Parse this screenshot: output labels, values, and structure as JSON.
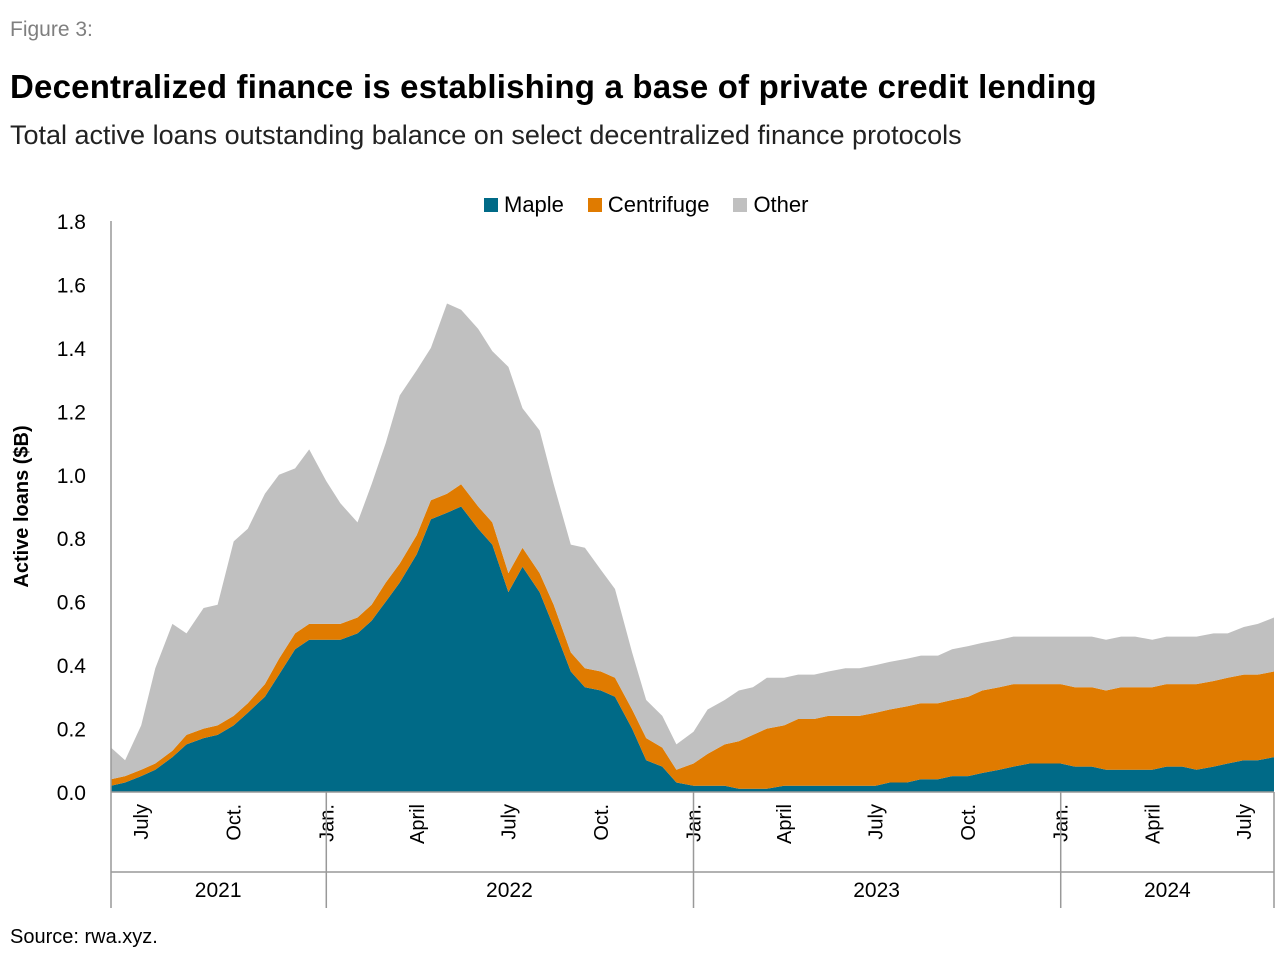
{
  "figure_label": "Figure 3:",
  "title": "Decentralized finance is establishing a base of private credit lending",
  "subtitle": "Total active loans outstanding balance on select decentralized finance protocols",
  "source": "Source: rwa.xyz.",
  "chart_data": {
    "type": "area",
    "stacked": true,
    "ylabel": "Active loans ($B)",
    "ylim": [
      0,
      1.8
    ],
    "yticks": [
      0.0,
      0.2,
      0.4,
      0.6,
      0.8,
      1.0,
      1.2,
      1.4,
      1.6,
      1.8
    ],
    "ytick_labels": [
      "0.0",
      "0.2",
      "0.4",
      "0.6",
      "0.8",
      "1.0",
      "1.2",
      "1.4",
      "1.6",
      "1.8"
    ],
    "grid": false,
    "legend_position": "top-center",
    "xlim": [
      "2021-06-01",
      "2024-07-31"
    ],
    "month_ticks": [
      {
        "date": "2021-07-01",
        "label": "July"
      },
      {
        "date": "2021-10-01",
        "label": "Oct."
      },
      {
        "date": "2022-01-01",
        "label": "Jan."
      },
      {
        "date": "2022-04-01",
        "label": "April"
      },
      {
        "date": "2022-07-01",
        "label": "July"
      },
      {
        "date": "2022-10-01",
        "label": "Oct."
      },
      {
        "date": "2023-01-01",
        "label": "Jan."
      },
      {
        "date": "2023-04-01",
        "label": "April"
      },
      {
        "date": "2023-07-01",
        "label": "July"
      },
      {
        "date": "2023-10-01",
        "label": "Oct."
      },
      {
        "date": "2024-01-01",
        "label": "Jan."
      },
      {
        "date": "2024-04-01",
        "label": "April"
      },
      {
        "date": "2024-07-01",
        "label": "July"
      }
    ],
    "year_groups": [
      {
        "label": "2021",
        "start": "2021-06-01",
        "end": "2021-12-31"
      },
      {
        "label": "2022",
        "start": "2022-01-01",
        "end": "2022-12-31"
      },
      {
        "label": "2023",
        "start": "2023-01-01",
        "end": "2023-12-31"
      },
      {
        "label": "2024",
        "start": "2024-01-01",
        "end": "2024-07-31"
      }
    ],
    "x": [
      "2021-06-01",
      "2021-06-15",
      "2021-07-01",
      "2021-07-15",
      "2021-08-01",
      "2021-08-15",
      "2021-09-01",
      "2021-09-15",
      "2021-10-01",
      "2021-10-15",
      "2021-11-01",
      "2021-11-15",
      "2021-12-01",
      "2021-12-15",
      "2022-01-01",
      "2022-01-15",
      "2022-02-01",
      "2022-02-15",
      "2022-03-01",
      "2022-03-15",
      "2022-04-01",
      "2022-04-15",
      "2022-05-01",
      "2022-05-15",
      "2022-06-01",
      "2022-06-15",
      "2022-07-01",
      "2022-07-15",
      "2022-08-01",
      "2022-08-15",
      "2022-09-01",
      "2022-09-15",
      "2022-10-01",
      "2022-10-15",
      "2022-11-01",
      "2022-11-15",
      "2022-12-01",
      "2022-12-15",
      "2023-01-01",
      "2023-01-15",
      "2023-02-01",
      "2023-02-15",
      "2023-03-01",
      "2023-03-15",
      "2023-04-01",
      "2023-04-15",
      "2023-05-01",
      "2023-05-15",
      "2023-06-01",
      "2023-06-15",
      "2023-07-01",
      "2023-07-15",
      "2023-08-01",
      "2023-08-15",
      "2023-09-01",
      "2023-09-15",
      "2023-10-01",
      "2023-10-15",
      "2023-11-01",
      "2023-11-15",
      "2023-12-01",
      "2023-12-15",
      "2024-01-01",
      "2024-01-15",
      "2024-02-01",
      "2024-02-15",
      "2024-03-01",
      "2024-03-15",
      "2024-04-01",
      "2024-04-15",
      "2024-05-01",
      "2024-05-15",
      "2024-06-01",
      "2024-06-15",
      "2024-07-01",
      "2024-07-15",
      "2024-07-31"
    ],
    "series": [
      {
        "name": "Maple",
        "color": "#006a87",
        "values": [
          0.02,
          0.03,
          0.05,
          0.07,
          0.11,
          0.15,
          0.17,
          0.18,
          0.21,
          0.25,
          0.3,
          0.37,
          0.45,
          0.48,
          0.48,
          0.48,
          0.5,
          0.54,
          0.6,
          0.66,
          0.75,
          0.86,
          0.88,
          0.9,
          0.83,
          0.78,
          0.63,
          0.71,
          0.63,
          0.52,
          0.38,
          0.33,
          0.32,
          0.3,
          0.2,
          0.1,
          0.08,
          0.03,
          0.02,
          0.02,
          0.02,
          0.01,
          0.01,
          0.01,
          0.02,
          0.02,
          0.02,
          0.02,
          0.02,
          0.02,
          0.02,
          0.03,
          0.03,
          0.04,
          0.04,
          0.05,
          0.05,
          0.06,
          0.07,
          0.08,
          0.09,
          0.09,
          0.09,
          0.08,
          0.08,
          0.07,
          0.07,
          0.07,
          0.07,
          0.08,
          0.08,
          0.07,
          0.08,
          0.09,
          0.1,
          0.1,
          0.11
        ]
      },
      {
        "name": "Centrifuge",
        "color": "#e07b00",
        "values": [
          0.02,
          0.02,
          0.02,
          0.02,
          0.02,
          0.03,
          0.03,
          0.03,
          0.03,
          0.03,
          0.04,
          0.05,
          0.05,
          0.05,
          0.05,
          0.05,
          0.05,
          0.05,
          0.06,
          0.06,
          0.06,
          0.06,
          0.06,
          0.07,
          0.07,
          0.07,
          0.06,
          0.06,
          0.06,
          0.07,
          0.06,
          0.06,
          0.06,
          0.06,
          0.06,
          0.07,
          0.06,
          0.04,
          0.07,
          0.1,
          0.13,
          0.15,
          0.17,
          0.19,
          0.19,
          0.21,
          0.21,
          0.22,
          0.22,
          0.22,
          0.23,
          0.23,
          0.24,
          0.24,
          0.24,
          0.24,
          0.25,
          0.26,
          0.26,
          0.26,
          0.25,
          0.25,
          0.25,
          0.25,
          0.25,
          0.25,
          0.26,
          0.26,
          0.26,
          0.26,
          0.26,
          0.27,
          0.27,
          0.27,
          0.27,
          0.27,
          0.27
        ]
      },
      {
        "name": "Other",
        "color": "#c0c0c0",
        "values": [
          0.1,
          0.05,
          0.14,
          0.3,
          0.4,
          0.32,
          0.38,
          0.38,
          0.55,
          0.55,
          0.6,
          0.58,
          0.52,
          0.55,
          0.45,
          0.38,
          0.3,
          0.38,
          0.44,
          0.53,
          0.52,
          0.48,
          0.6,
          0.55,
          0.56,
          0.54,
          0.65,
          0.44,
          0.45,
          0.38,
          0.34,
          0.38,
          0.32,
          0.28,
          0.18,
          0.12,
          0.1,
          0.08,
          0.1,
          0.14,
          0.14,
          0.16,
          0.15,
          0.16,
          0.15,
          0.14,
          0.14,
          0.14,
          0.15,
          0.15,
          0.15,
          0.15,
          0.15,
          0.15,
          0.15,
          0.16,
          0.16,
          0.15,
          0.15,
          0.15,
          0.15,
          0.15,
          0.15,
          0.16,
          0.16,
          0.16,
          0.16,
          0.16,
          0.15,
          0.15,
          0.15,
          0.15,
          0.15,
          0.14,
          0.15,
          0.16,
          0.17
        ]
      }
    ]
  }
}
